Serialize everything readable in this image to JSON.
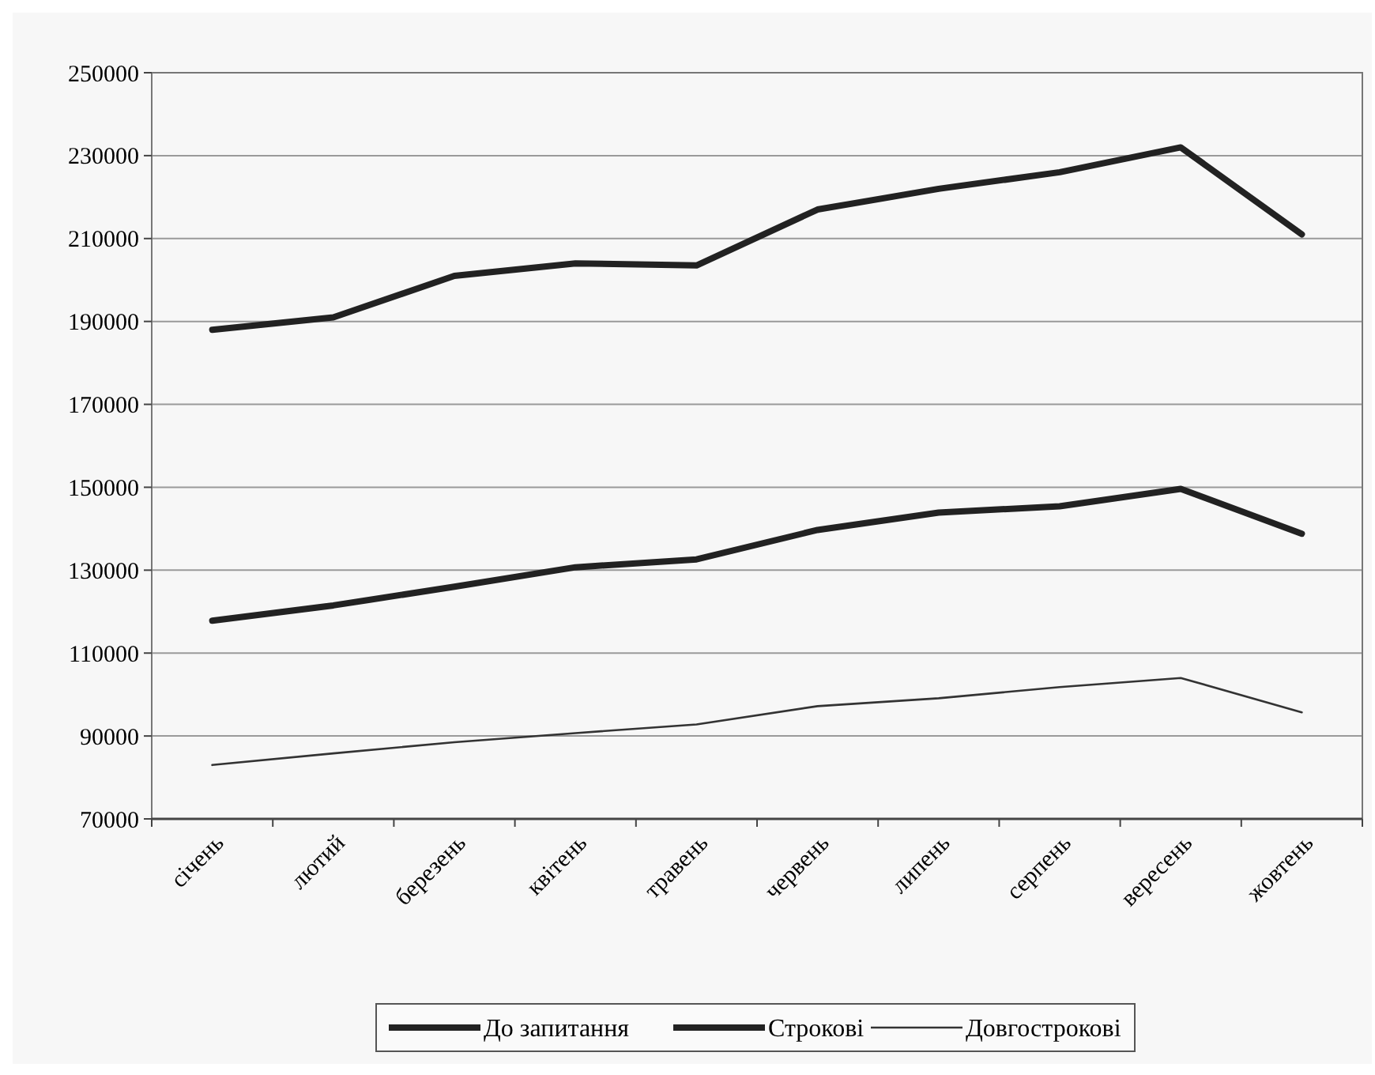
{
  "chart_data": {
    "type": "line",
    "categories": [
      "січень",
      "лютий",
      "березень",
      "квітень",
      "травень",
      "червень",
      "липень",
      "серпень",
      "вересень",
      "жовтень"
    ],
    "series": [
      {
        "name": "До запитання",
        "color": "#222222",
        "values": [
          188000,
          191000,
          201000,
          204000,
          203500,
          217000,
          222000,
          226000,
          232000,
          211000
        ]
      },
      {
        "name": "Строкові",
        "color": "#222222",
        "values": [
          117800,
          121500,
          126000,
          130700,
          132600,
          139700,
          143900,
          145400,
          149600,
          138800
        ]
      },
      {
        "name": "Довгострокові",
        "color": "#333333",
        "values": [
          83000,
          85800,
          88500,
          90700,
          92800,
          97200,
          99100,
          101800,
          104000,
          95700
        ]
      }
    ],
    "ylim": [
      70000,
      250000
    ],
    "yticks": [
      70000,
      90000,
      110000,
      130000,
      150000,
      170000,
      190000,
      210000,
      230000,
      250000
    ],
    "grid": "y",
    "legend": "bottom",
    "marker": "none",
    "line_style": "solid"
  }
}
